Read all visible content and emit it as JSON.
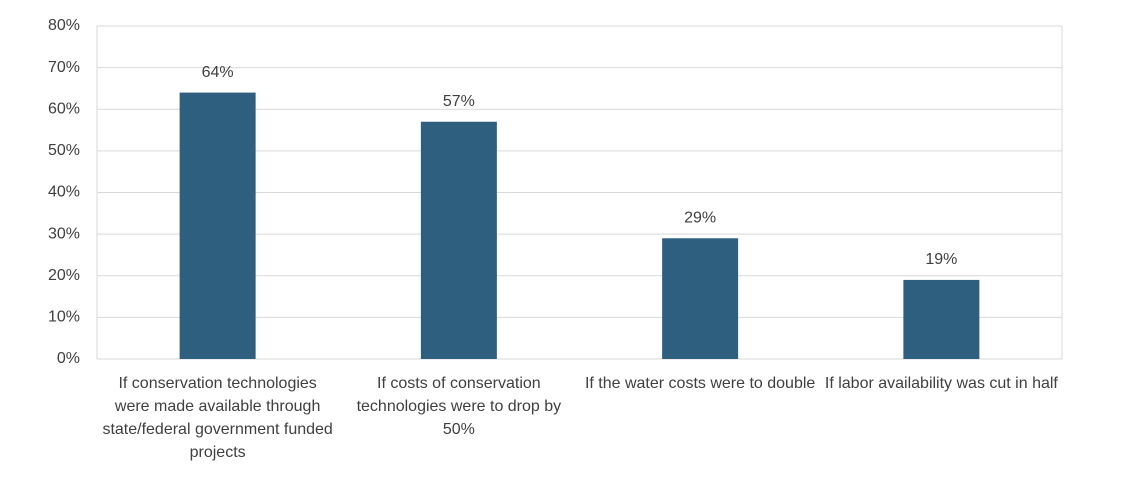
{
  "chart_data": {
    "type": "bar",
    "categories": [
      "If conservation technologies were made available through state/federal government funded projects",
      "If costs of conservation technologies were to drop by 50%",
      "If the water costs were to double",
      "If labor availability was cut in half"
    ],
    "values": [
      64,
      57,
      29,
      19
    ],
    "value_labels": [
      "64%",
      "57%",
      "29%",
      "19%"
    ],
    "color": "#2e5f7e",
    "ylim": [
      0,
      80
    ],
    "yticks": [
      {
        "value": 0,
        "label": "0%"
      },
      {
        "value": 10,
        "label": "10%"
      },
      {
        "value": 20,
        "label": "20%"
      },
      {
        "value": 30,
        "label": "30%"
      },
      {
        "value": 40,
        "label": "40%"
      },
      {
        "value": 50,
        "label": "50%"
      },
      {
        "value": 60,
        "label": "60%"
      },
      {
        "value": 70,
        "label": "70%"
      },
      {
        "value": 80,
        "label": "80%"
      }
    ],
    "grid": true
  }
}
